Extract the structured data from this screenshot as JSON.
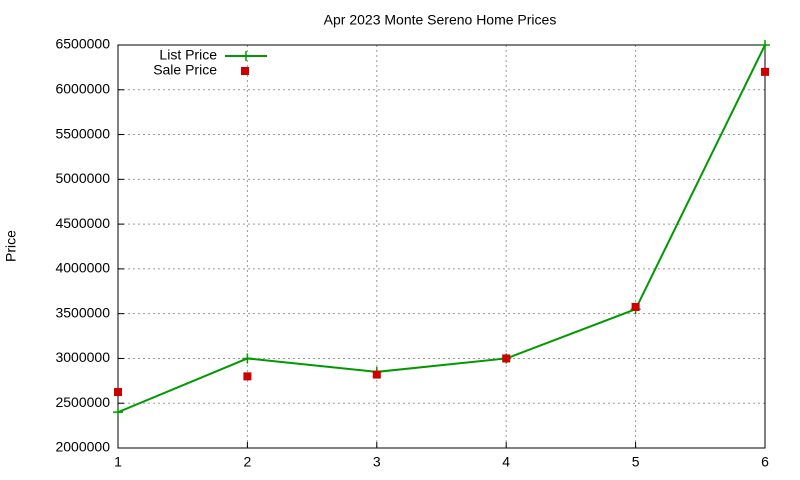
{
  "chart_data": {
    "type": "line",
    "title": "Apr 2023 Monte Sereno Home Prices",
    "ylabel": "Price",
    "x": [
      1,
      2,
      3,
      4,
      5,
      6
    ],
    "xlim": [
      1,
      6
    ],
    "xticks": [
      1,
      2,
      3,
      4,
      5,
      6
    ],
    "ylim": [
      2000000,
      6500000
    ],
    "yticks": [
      2000000,
      2500000,
      3000000,
      3500000,
      4000000,
      4500000,
      5000000,
      5500000,
      6000000,
      6500000
    ],
    "grid": true,
    "legend": "top-left",
    "series": [
      {
        "name": "List Price",
        "color": "#009900",
        "style": "linespoints",
        "values": [
          2400000,
          3000000,
          2850000,
          3000000,
          3550000,
          6500000
        ]
      },
      {
        "name": "Sale Price",
        "color": "#cc0000",
        "style": "points",
        "values": [
          2625000,
          2800000,
          2820000,
          3000000,
          3575000,
          6200000
        ]
      }
    ]
  }
}
